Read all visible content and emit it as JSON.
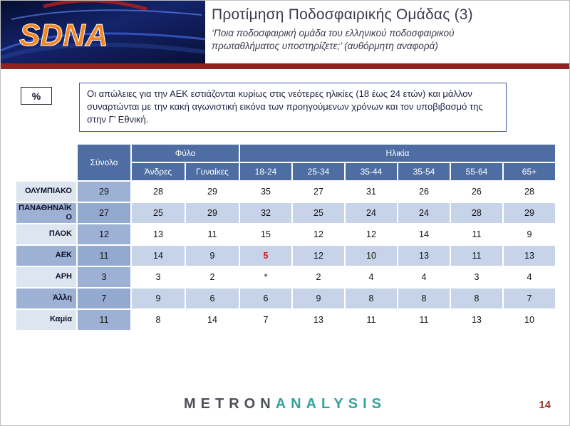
{
  "header": {
    "logo_text": "SDNA",
    "title": "Προτίμηση Ποδοσφαιρικής Ομάδας (3)",
    "subtitle_line1": "‘Ποια ποδοσφαιρική ομάδα του ελληνικού ποδοσφαιρικού",
    "subtitle_line2": "πρωταθλήματος υποστηρίζετε;’ (αυθόρμητη αναφορά)"
  },
  "percent_label": "%",
  "note": "Οι απώλειες για την ΑΕΚ εστιάζονται κυρίως στις νεότερες ηλικίες (18 έως 24 ετών) και μάλλον συναρτώνται με την κακή αγωνιστική εικόνα των προηγούμενων χρόνων και τον υποβιβασμό της στην Γ’ Εθνική.",
  "table": {
    "col_total": "Σύνολο",
    "group_gender": "Φύλο",
    "group_age": "Ηλικία",
    "subheaders": [
      "Άνδρες",
      "Γυναίκες",
      "18-24",
      "25-34",
      "35-44",
      "35-54",
      "55-64",
      "65+"
    ],
    "rows": [
      {
        "label": "ΟΛΥΜΠΙΑΚΟ",
        "total": "29",
        "values": [
          "28",
          "29",
          "35",
          "27",
          "31",
          "26",
          "26",
          "28"
        ]
      },
      {
        "label": "ΠΑΝΑΘΗΝΑΪΚΟ",
        "total": "27",
        "values": [
          "25",
          "29",
          "32",
          "25",
          "24",
          "24",
          "28",
          "29"
        ]
      },
      {
        "label": "ΠΑΟΚ",
        "total": "12",
        "values": [
          "13",
          "11",
          "15",
          "12",
          "12",
          "14",
          "11",
          "9"
        ]
      },
      {
        "label": "ΑΕΚ",
        "total": "11",
        "values": [
          "14",
          "9",
          "5",
          "12",
          "10",
          "13",
          "11",
          "13"
        ],
        "red_index": 2
      },
      {
        "label": "ΑΡΗ",
        "total": "3",
        "values": [
          "3",
          "2",
          "*",
          "2",
          "4",
          "4",
          "3",
          "4"
        ]
      },
      {
        "label": "Άλλη",
        "total": "7",
        "values": [
          "9",
          "6",
          "6",
          "9",
          "8",
          "8",
          "8",
          "7"
        ]
      },
      {
        "label": "Καμία",
        "total": "11",
        "values": [
          "8",
          "14",
          "7",
          "13",
          "11",
          "11",
          "13",
          "10"
        ]
      }
    ]
  },
  "footer": {
    "brand_metron": "METRON",
    "brand_analysis": "ANALYSIS",
    "page_number": "14"
  },
  "colors": {
    "header_blue": "#4e6da3",
    "row_light": "#c7d3e8",
    "label_light": "#dde5f1",
    "total_blue": "#9db1d4",
    "total_blue_dark": "#93a9cf",
    "divider_red": "#8e2320",
    "value_red": "#d01616",
    "logo_orange": "#f6861f",
    "brand_teal": "#33a39b",
    "brand_gray": "#4c4f58",
    "page_red": "#9e3430"
  }
}
